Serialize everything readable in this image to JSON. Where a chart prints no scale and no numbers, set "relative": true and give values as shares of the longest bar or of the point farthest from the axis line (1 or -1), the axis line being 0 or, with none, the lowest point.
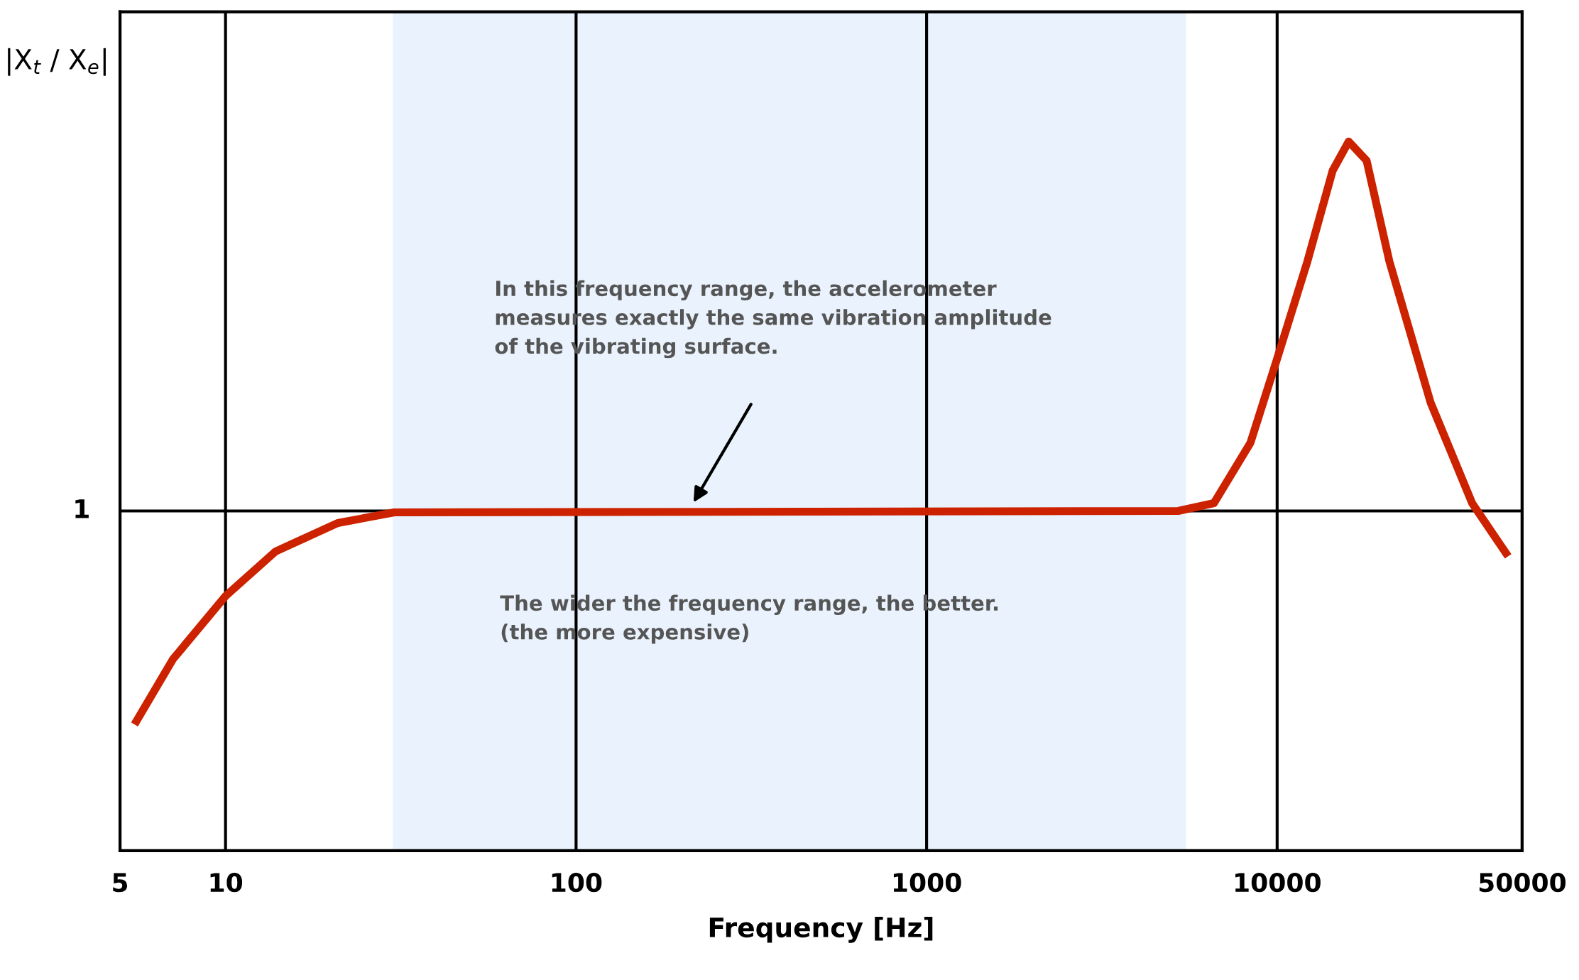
{
  "chart_data": {
    "type": "line",
    "relative": true,
    "xlabel": "Frequency [Hz]",
    "ylabel": "|X$_{t}$ / X$_{e}$|",
    "x": [
      5.5,
      7.08,
      10,
      13.9,
      20.9,
      30.3,
      5220,
      6600,
      8390,
      9930,
      12200,
      14400,
      16000,
      18000,
      20900,
      27400,
      36000,
      45600
    ],
    "series": [
      {
        "color": "#cc2200",
        "values": [
          0.178,
          0.27,
          0.359,
          0.422,
          0.462,
          0.477,
          0.479,
          0.49,
          0.575,
          0.689,
          0.831,
          0.959,
          1.0,
          0.973,
          0.831,
          0.632,
          0.49,
          0.415
        ]
      }
    ],
    "log": "x",
    "xlim": [
      5,
      50000
    ],
    "xticks": [
      5,
      10,
      100,
      1000,
      10000,
      50000
    ],
    "grid": "x",
    "ref_lines": [
      {
        "axis": "y",
        "value": 0.479,
        "color": "#000000"
      }
    ],
    "bands": [
      {
        "axis": "x",
        "from": 30,
        "to": 5500,
        "color": "#eaf3fd"
      }
    ],
    "annotations": [
      "In this frequency range, the accelerometer\nmeasures exactly the same vibration amplitude\nof the vibrating surface.",
      "The wider the frequency range, the better.\n(the more expensive)",
      "1"
    ]
  }
}
